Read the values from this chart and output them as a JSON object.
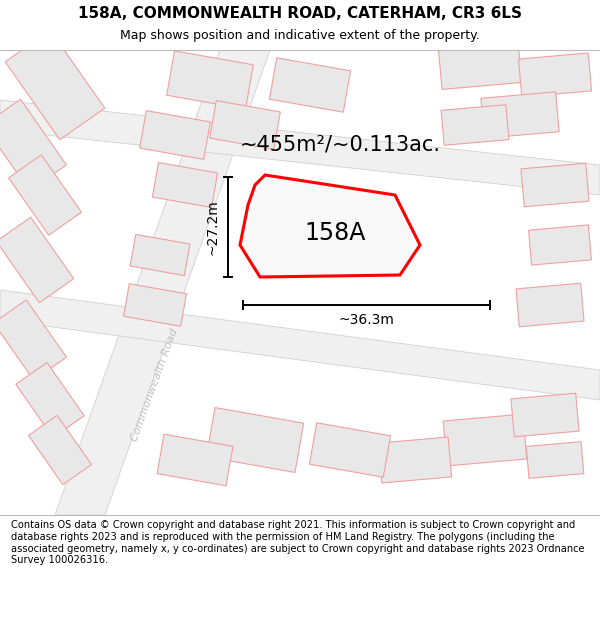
{
  "title": "158A, COMMONWEALTH ROAD, CATERHAM, CR3 6LS",
  "subtitle": "Map shows position and indicative extent of the property.",
  "area_text": "~455m²/~0.113ac.",
  "label_158a": "158A",
  "dim_width": "~36.3m",
  "dim_height": "~27.2m",
  "road_label": "Commonwealth Road",
  "footer_text": "Contains OS data © Crown copyright and database right 2021. This information is subject to Crown copyright and database rights 2023 and is reproduced with the permission of HM Land Registry. The polygons (including the associated geometry, namely x, y co-ordinates) are subject to Crown copyright and database rights 2023 Ordnance Survey 100026316.",
  "map_bg": "#ffffff",
  "building_fill": "#e8e8e8",
  "building_edge_light": "#f0a0a0",
  "road_fill": "#e8e8e8",
  "road_edge": "#c8c8c8",
  "plot_fill": "#f8f8f8",
  "plot_edge": "#ff0000",
  "dim_color": "#000000",
  "text_color": "#000000",
  "road_text_color": "#c0c0c0",
  "footer_bg": "#ffffff"
}
